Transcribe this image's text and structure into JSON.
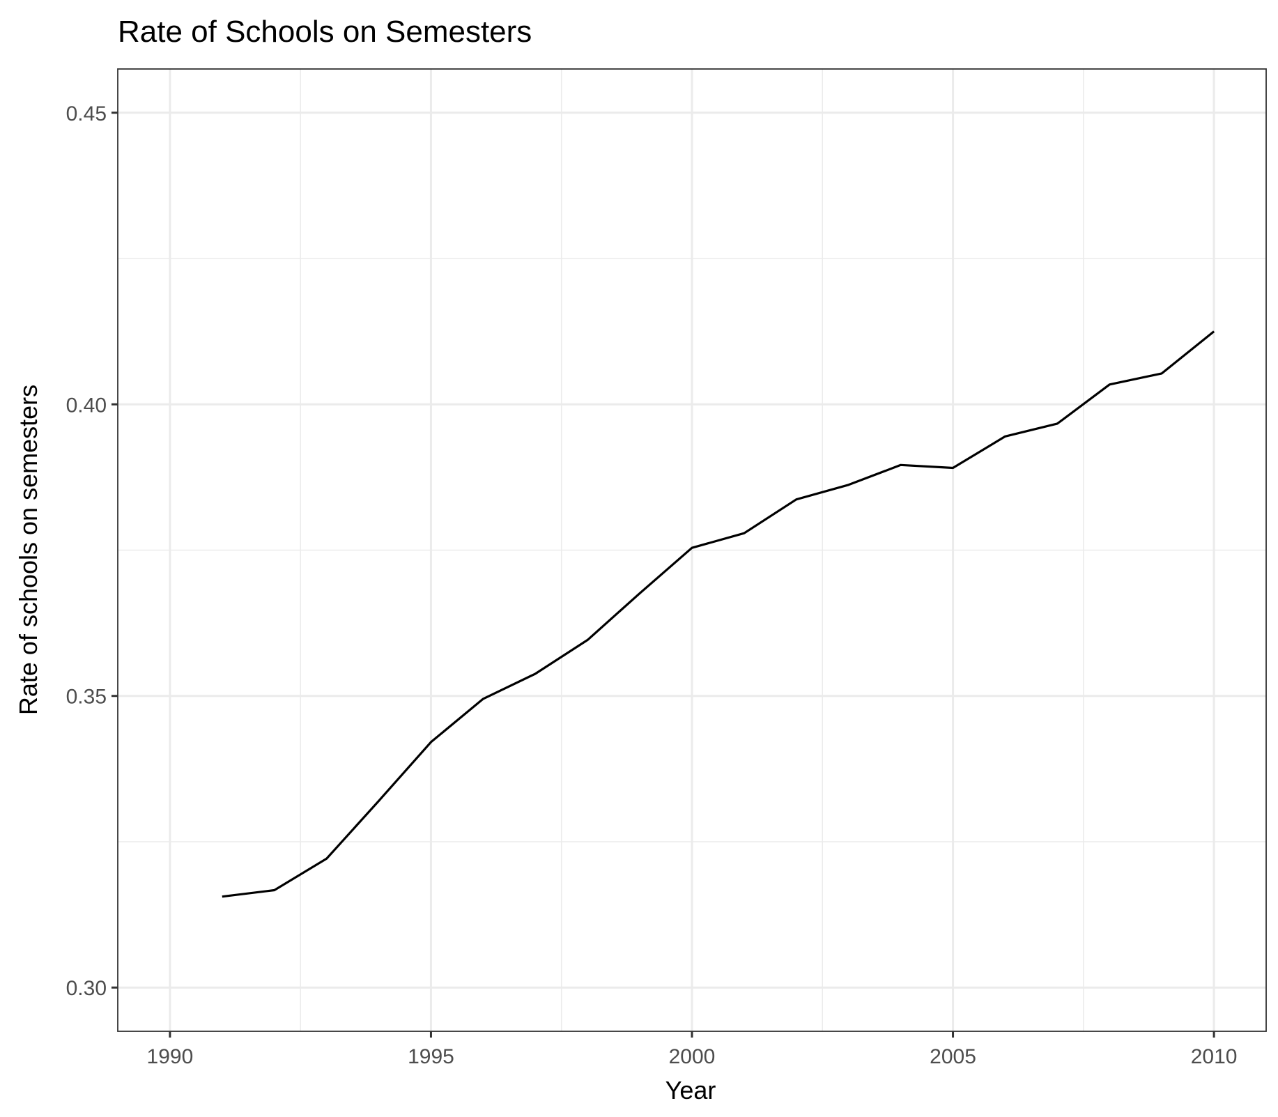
{
  "chart_data": {
    "type": "line",
    "title": "Rate of Schools on Semesters",
    "xlabel": "Year",
    "ylabel": "Rate of schools on semesters",
    "xlim": [
      1989.0,
      2011.0
    ],
    "ylim": [
      0.2925,
      0.4575
    ],
    "x_ticks": [
      1990,
      1995,
      2000,
      2005,
      2010
    ],
    "x_tick_labels": [
      "1990",
      "1995",
      "2000",
      "2005",
      "2010"
    ],
    "x_minor_ticks": [
      1992.5,
      1997.5,
      2002.5,
      2007.5
    ],
    "y_ticks": [
      0.3,
      0.35,
      0.4,
      0.45
    ],
    "y_tick_labels": [
      "0.30",
      "0.35",
      "0.40",
      "0.45"
    ],
    "y_minor_ticks": [
      0.325,
      0.375,
      0.425
    ],
    "grid": true,
    "legend": "none",
    "colors": {
      "line": "#000000",
      "grid": "#ebebeb",
      "border": "#333333",
      "tick_text": "#4d4d4d"
    },
    "x": [
      1991,
      1992,
      1993,
      1994,
      1995,
      1996,
      1997,
      1998,
      1999,
      2000,
      2001,
      2002,
      2003,
      2004,
      2005,
      2006,
      2007,
      2008,
      2009,
      2010
    ],
    "series": [
      {
        "values": [
          0.3156,
          0.3167,
          0.3221,
          0.332,
          0.3421,
          0.3495,
          0.3538,
          0.3596,
          0.3676,
          0.3754,
          0.3779,
          0.3837,
          0.3862,
          0.3896,
          0.3891,
          0.3945,
          0.3967,
          0.4034,
          0.4053,
          0.4125
        ]
      }
    ]
  }
}
